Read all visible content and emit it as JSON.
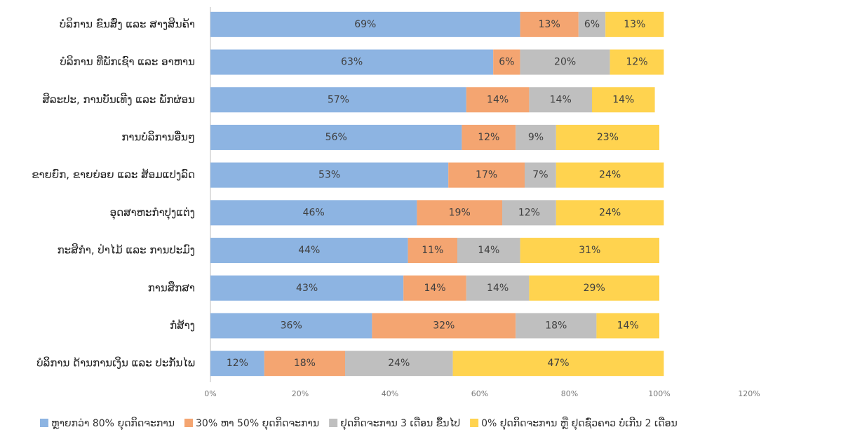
{
  "chart_data": {
    "type": "stacked_bar_horizontal",
    "categories": [
      "ບໍລິການ ຂົນສົ່ງ ແລະ ສາງສິນຄ້າ",
      "ບໍລິການ ທີ່ພັກເຊົາ ແລະ ອາຫານ",
      "ສິລະປະ, ການບັນເທີງ ແລະ ພັກຜ່ອນ",
      "ການບໍລິການອື່ນໆ",
      "ຂາຍຍົກ, ຂາຍຍ່ອຍ ແລະ ສ້ອມແປງລົດ",
      "ອຸດສາຫະກຳປຸງແຕ່ງ",
      "ກະສິກຳ, ປ່າໄມ້ ແລະ ການປະມົງ",
      "ການສຶກສາ",
      "ກໍ່ສ້າງ",
      "ບໍລິການ ດ້ານການເງິນ ແລະ ປະກັນໄພ"
    ],
    "series": [
      {
        "name": "ຫຼາຍກວ່າ 80% ຍຸດກິດຈະການ",
        "color": "#8db4e2",
        "values": [
          69,
          63,
          57,
          56,
          53,
          46,
          44,
          43,
          36,
          12
        ],
        "value_labels": [
          "69%",
          "63%",
          "57%",
          "56%",
          "53%",
          "46%",
          "44%",
          "43%",
          "36%",
          "12%"
        ]
      },
      {
        "name": "30% ຫາ 50% ຍຸດກິດຈະການ",
        "color": "#f4a571",
        "values": [
          13,
          6,
          14,
          12,
          17,
          19,
          11,
          14,
          32,
          18
        ],
        "value_labels": [
          "13%",
          "6%",
          "14%",
          "12%",
          "17%",
          "19%",
          "11%",
          "14%",
          "32%",
          "18%"
        ]
      },
      {
        "name": "ຢຸດກິດຈະການ 3 ເດືອນ ຂຶ້ນໄປ",
        "color": "#bfbfbf",
        "values": [
          6,
          20,
          14,
          9,
          7,
          12,
          14,
          14,
          18,
          24
        ],
        "value_labels": [
          "6%",
          "20%",
          "14%",
          "9%",
          "7%",
          "12%",
          "14%",
          "14%",
          "18%",
          "24%"
        ]
      },
      {
        "name": "0% ຢຸດກິດຈະການ ຫຼື ຢຸດຊົ່ວຄາວ ບໍ່ເກີນ 2 ເດືອນ",
        "color": "#ffd34f",
        "values": [
          13,
          12,
          14,
          23,
          24,
          24,
          31,
          29,
          14,
          47
        ],
        "value_labels": [
          "13%",
          "12%",
          "14%",
          "23%",
          "24%",
          "24%",
          "31%",
          "29%",
          "14%",
          "47%"
        ]
      }
    ],
    "xlim": [
      0,
      120
    ],
    "xticks": [
      {
        "value": 0,
        "label": "0%"
      },
      {
        "value": 20,
        "label": "20%"
      },
      {
        "value": 40,
        "label": "40%"
      },
      {
        "value": 60,
        "label": "60%"
      },
      {
        "value": 80,
        "label": "80%"
      },
      {
        "value": 100,
        "label": "100%"
      },
      {
        "value": 120,
        "label": "120%"
      }
    ],
    "legend": "bottom"
  }
}
